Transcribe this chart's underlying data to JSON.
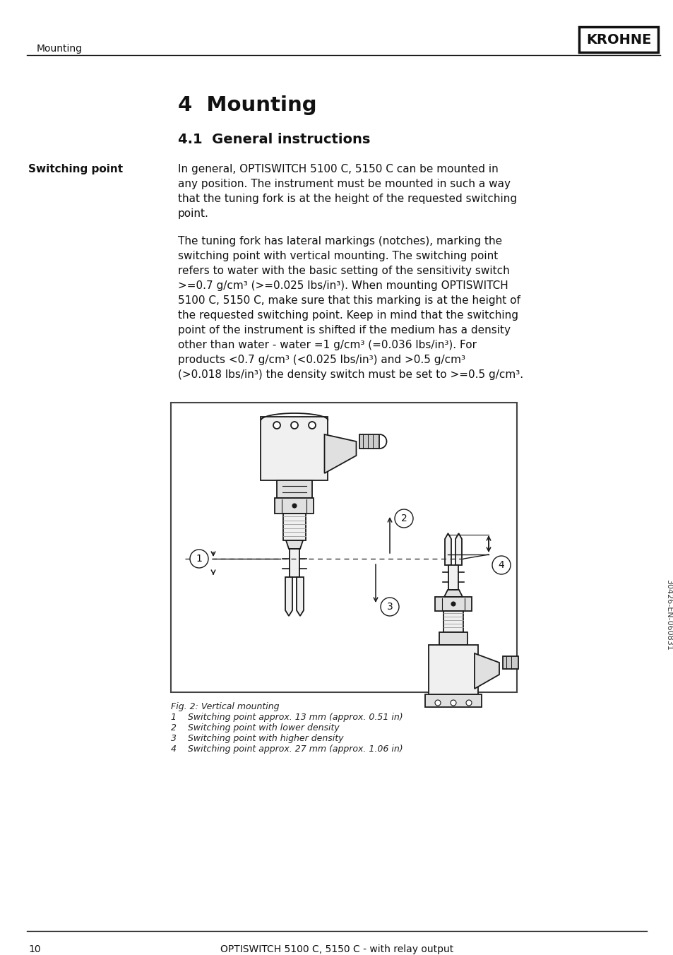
{
  "page_bg": "#ffffff",
  "header_text_left": "Mounting",
  "header_logo": "KROHNE",
  "footer_page": "10",
  "footer_text": "OPTISWITCH 5100 C, 5150 C - with relay output",
  "sidebar_text": "30426-EN-060831",
  "chapter_title": "4  Mounting",
  "section_title": "4.1  General instructions",
  "label_bold": "Switching point",
  "p1_lines": [
    "In general, OPTISWITCH 5100 C, 5150 C can be mounted in",
    "any position. The instrument must be mounted in such a way",
    "that the tuning fork is at the height of the requested switching",
    "point."
  ],
  "p2_lines": [
    "The tuning fork has lateral markings (notches), marking the",
    "switching point with vertical mounting. The switching point",
    "refers to water with the basic setting of the sensitivity switch",
    ">=0.7 g/cm³ (>=0.025 lbs/in³). When mounting OPTISWITCH",
    "5100 C, 5150 C, make sure that this marking is at the height of",
    "the requested switching point. Keep in mind that the switching",
    "point of the instrument is shifted if the medium has a density",
    "other than water - water =1 g/cm³ (=0.036 lbs/in³). For",
    "products <0.7 g/cm³ (<0.025 lbs/in³) and >0.5 g/cm³",
    "(>0.018 lbs/in³) the density switch must be set to >=0.5 g/cm³."
  ],
  "fig_caption_title": "Fig. 2: Vertical mounting",
  "fig_captions": [
    "1    Switching point approx. 13 mm (approx. 0.51 in)",
    "2    Switching point with lower density",
    "3    Switching point with higher density",
    "4    Switching point approx. 27 mm (approx. 1.06 in)"
  ]
}
